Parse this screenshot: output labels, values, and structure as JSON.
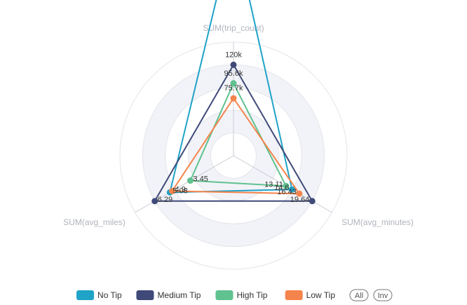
{
  "chart_data": {
    "type": "radar",
    "indicators": [
      {
        "name": "SUM(trip_count)",
        "max": 150000
      },
      {
        "name": "SUM(avg_minutes)",
        "max": 24.55
      },
      {
        "name": "SUM(avg_miles)",
        "max": 7.86
      }
    ],
    "series": [
      {
        "name": "No Tip",
        "color": "#1fa3c7",
        "values": [
          300000,
          14.6,
          5.08
        ],
        "labels": [
          "",
          "14.6",
          "5.08"
        ]
      },
      {
        "name": "Medium Tip",
        "color": "#3f4a78",
        "values": [
          120000,
          19.64,
          6.29
        ],
        "labels": [
          "120k",
          "19.64",
          "6.29"
        ]
      },
      {
        "name": "High Tip",
        "color": "#5fc28f",
        "values": [
          95600,
          13.11,
          3.45
        ],
        "labels": [
          "95.6k",
          "13.11",
          "3.45"
        ]
      },
      {
        "name": "Low Tip",
        "color": "#f5844c",
        "values": [
          75700,
          16.43,
          4.9
        ],
        "labels": [
          "75.7k",
          "16.43",
          "4.9"
        ]
      }
    ],
    "legend": {
      "position": "bottom",
      "buttons": [
        "All",
        "Inv"
      ]
    }
  }
}
